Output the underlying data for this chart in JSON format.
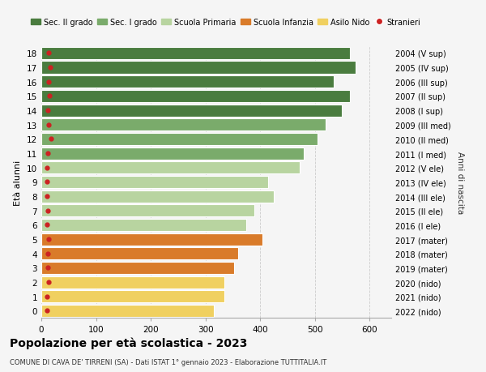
{
  "ages": [
    18,
    17,
    16,
    15,
    14,
    13,
    12,
    11,
    10,
    9,
    8,
    7,
    6,
    5,
    4,
    3,
    2,
    1,
    0
  ],
  "values": [
    565,
    575,
    535,
    565,
    550,
    520,
    505,
    480,
    472,
    415,
    425,
    390,
    375,
    405,
    360,
    353,
    335,
    335,
    315
  ],
  "stranieri": [
    14,
    16,
    13,
    15,
    12,
    14,
    18,
    12,
    10,
    10,
    11,
    12,
    10,
    14,
    12,
    12,
    14,
    10,
    10
  ],
  "right_labels_by_age": {
    "18": "2004 (V sup)",
    "17": "2005 (IV sup)",
    "16": "2006 (III sup)",
    "15": "2007 (II sup)",
    "14": "2008 (I sup)",
    "13": "2009 (III med)",
    "12": "2010 (II med)",
    "11": "2011 (I med)",
    "10": "2012 (V ele)",
    "9": "2013 (IV ele)",
    "8": "2014 (III ele)",
    "7": "2015 (II ele)",
    "6": "2016 (I ele)",
    "5": "2017 (mater)",
    "4": "2018 (mater)",
    "3": "2019 (mater)",
    "2": "2020 (nido)",
    "1": "2021 (nido)",
    "0": "2022 (nido)"
  },
  "bar_colors_by_age": {
    "18": "#4a7c3f",
    "17": "#4a7c3f",
    "16": "#4a7c3f",
    "15": "#4a7c3f",
    "14": "#4a7c3f",
    "13": "#7aab6b",
    "12": "#7aab6b",
    "11": "#7aab6b",
    "10": "#b8d4a0",
    "9": "#b8d4a0",
    "8": "#b8d4a0",
    "7": "#b8d4a0",
    "6": "#b8d4a0",
    "5": "#d97b2a",
    "4": "#d97b2a",
    "3": "#d97b2a",
    "2": "#f0d060",
    "1": "#f0d060",
    "0": "#f0d060"
  },
  "legend_labels": [
    "Sec. II grado",
    "Sec. I grado",
    "Scuola Primaria",
    "Scuola Infanzia",
    "Asilo Nido",
    "Stranieri"
  ],
  "legend_colors": [
    "#4a7c3f",
    "#7aab6b",
    "#b8d4a0",
    "#d97b2a",
    "#f0d060",
    "#cc2222"
  ],
  "stranieri_color": "#cc2222",
  "title": "Popolazione per età scolastica - 2023",
  "subtitle": "COMUNE DI CAVA DE' TIRRENI (SA) - Dati ISTAT 1° gennaio 2023 - Elaborazione TUTTITALIA.IT",
  "ylabel": "Età alunni",
  "right_ylabel": "Anni di nascita",
  "xlabel_ticks": [
    0,
    100,
    200,
    300,
    400,
    500,
    600
  ],
  "xlim": [
    0,
    640
  ],
  "background_color": "#f5f5f5",
  "bar_edgecolor": "white",
  "grid_color": "#cccccc"
}
